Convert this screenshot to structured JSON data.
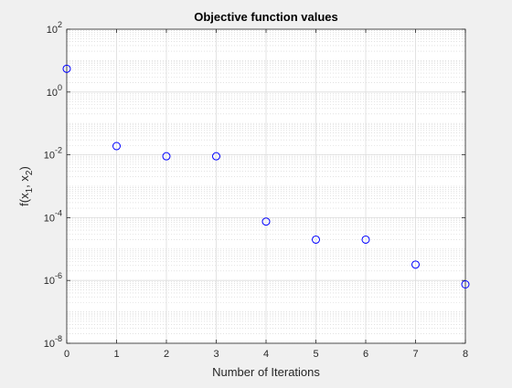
{
  "chart_data": {
    "type": "scatter",
    "title": "Objective function values",
    "xlabel": "Number of Iterations",
    "ylabel": {
      "text": "f(x",
      "sub1": "1",
      "mid": ", x",
      "sub2": "2",
      "end": ")"
    },
    "xlim": [
      0,
      8
    ],
    "ylim": [
      1e-08,
      100
    ],
    "yscale": "log",
    "grid": true,
    "minor_grid": true,
    "x_ticks": [
      "0",
      "1",
      "2",
      "3",
      "4",
      "5",
      "6",
      "7",
      "8"
    ],
    "y_ticks": [
      {
        "base": "10",
        "exp": "2",
        "value": 100
      },
      {
        "base": "10",
        "exp": "0",
        "value": 1
      },
      {
        "base": "10",
        "exp": "-2",
        "value": 0.01
      },
      {
        "base": "10",
        "exp": "-4",
        "value": 0.0001
      },
      {
        "base": "10",
        "exp": "-6",
        "value": 1e-06
      },
      {
        "base": "10",
        "exp": "-8",
        "value": 1e-08
      }
    ],
    "marker": "circle-open",
    "marker_color": "#0000ff",
    "x": [
      0,
      1,
      2,
      3,
      4,
      5,
      6,
      7,
      8
    ],
    "y": [
      5.5,
      0.019,
      0.009,
      0.009,
      7.5e-05,
      2e-05,
      2e-05,
      3.2e-06,
      7.5e-07
    ]
  }
}
